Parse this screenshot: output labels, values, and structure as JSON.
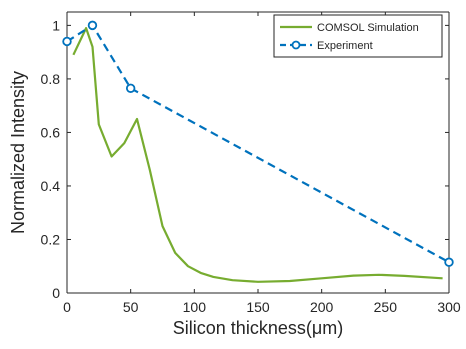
{
  "chart_data": {
    "type": "line",
    "title": "",
    "xlabel": "Silicon thickness(μm)",
    "ylabel": "Normalized Intensity",
    "xlim": [
      0,
      300
    ],
    "ylim": [
      0,
      1.05
    ],
    "xticks": [
      "0",
      "50",
      "100",
      "150",
      "200",
      "250",
      "300"
    ],
    "yticks": [
      "0",
      "0.2",
      "0.4",
      "0.6",
      "0.8",
      "1"
    ],
    "grid": false,
    "legend_position": "top-right",
    "series": [
      {
        "name": "COMSOL Simulation",
        "color": "#77AC30",
        "style": "solid",
        "x": [
          5,
          15,
          20,
          25,
          35,
          45,
          55,
          65,
          75,
          85,
          95,
          105,
          115,
          130,
          150,
          175,
          200,
          225,
          245,
          265,
          295
        ],
        "y": [
          0.89,
          0.99,
          0.92,
          0.63,
          0.51,
          0.56,
          0.65,
          0.46,
          0.25,
          0.15,
          0.1,
          0.075,
          0.06,
          0.048,
          0.042,
          0.045,
          0.055,
          0.065,
          0.068,
          0.064,
          0.055
        ]
      },
      {
        "name": "Experiment",
        "color": "#0072BD",
        "style": "dashed",
        "marker": "circle",
        "x": [
          0,
          20,
          50,
          300
        ],
        "y": [
          0.94,
          1.0,
          0.765,
          0.115
        ]
      }
    ]
  }
}
